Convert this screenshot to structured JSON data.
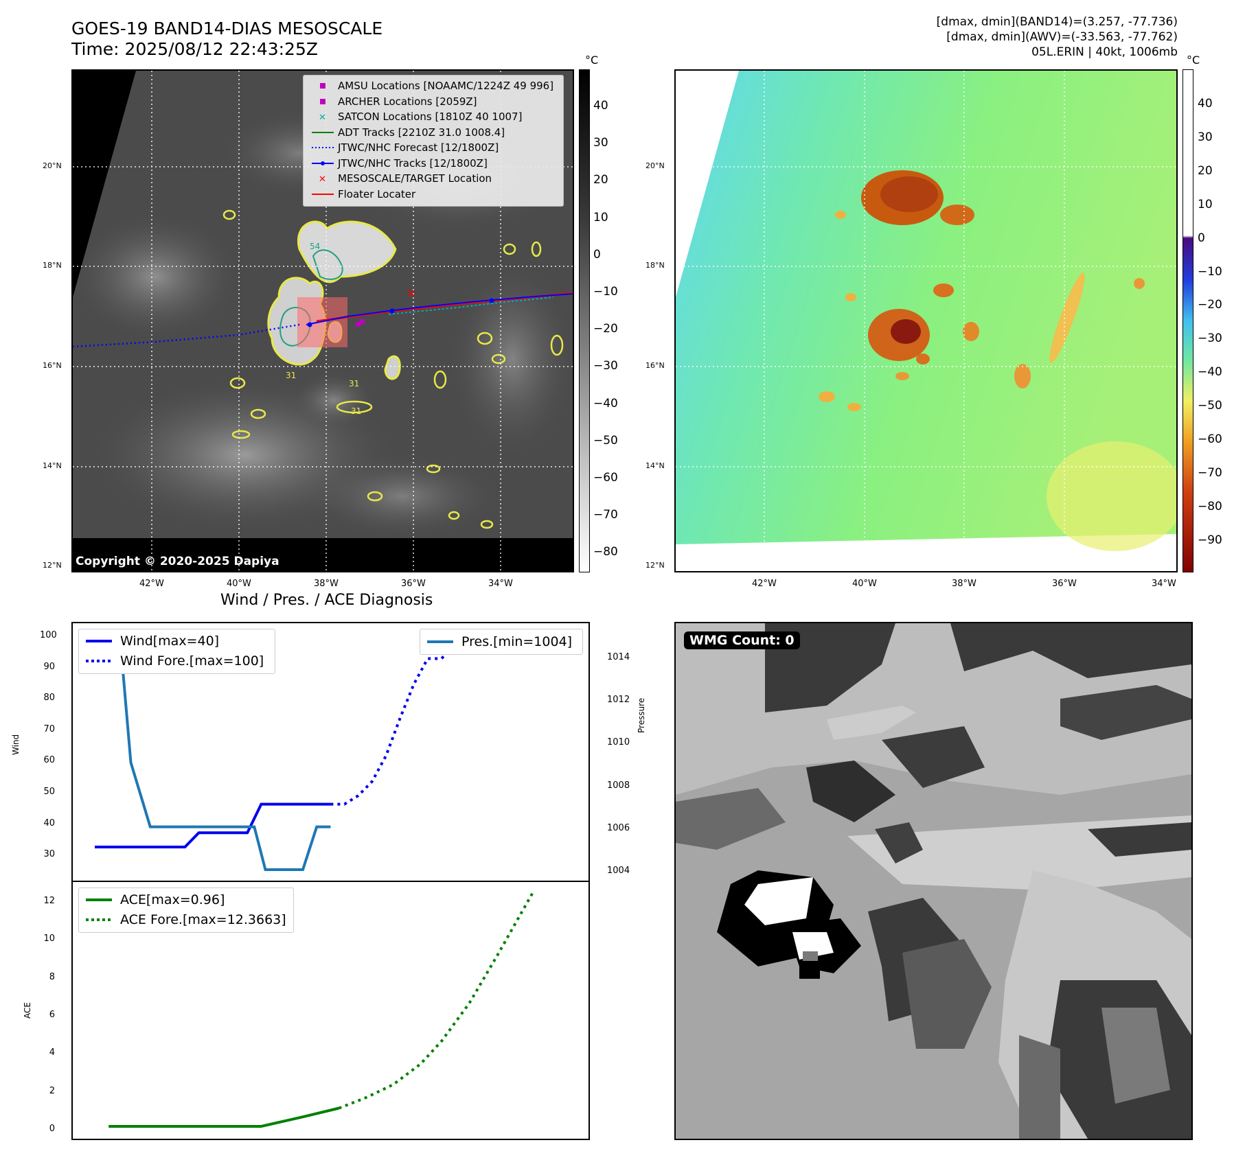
{
  "header": {
    "title": "GOES-19 BAND14-DIAS MESOSCALE",
    "time": "Time: 2025/08/12 22:43:25Z",
    "info_line1": "[dmax, dmin](BAND14)=(3.257, -77.736)",
    "info_line2": "[dmax, dmin](AWV)=(-33.563, -77.762)",
    "info_line3": "05L.ERIN | 40kt, 1006mb"
  },
  "map_axes": {
    "lat_labels": [
      "20°N",
      "18°N",
      "16°N",
      "14°N",
      "12°N"
    ],
    "lon_labels": [
      "42°W",
      "40°W",
      "38°W",
      "36°W",
      "34°W"
    ],
    "copyright": "Copyright © 2020-2025 Dapiya",
    "contour_labels": [
      "54",
      "31",
      "31",
      "31"
    ]
  },
  "ir_colorbar": {
    "unit": "°C",
    "ticks": [
      "40",
      "30",
      "20",
      "10",
      "0",
      "−10",
      "−20",
      "−30",
      "−40",
      "−50",
      "−60",
      "−70",
      "−80"
    ]
  },
  "awv_colorbar": {
    "unit": "°C",
    "ticks": [
      "40",
      "30",
      "20",
      "10",
      "0",
      "−10",
      "−20",
      "−30",
      "−40",
      "−50",
      "−60",
      "−70",
      "−80",
      "−90"
    ]
  },
  "legend": {
    "items": [
      {
        "label": "AMSU Locations [NOAAMC/1224Z 49 996]",
        "symbol": "square",
        "color": "#c000c0"
      },
      {
        "label": "ARCHER Locations [2059Z]",
        "symbol": "square",
        "color": "#c000c0"
      },
      {
        "label": "SATCON Locations [1810Z 40 1007]",
        "symbol": "x",
        "color": "#00b0b0"
      },
      {
        "label": "ADT Tracks [2210Z 31.0 1008.4]",
        "symbol": "line",
        "color": "#008000"
      },
      {
        "label": "JTWC/NHC Forecast [12/1800Z]",
        "symbol": "dotted",
        "color": "#0000ff"
      },
      {
        "label": "JTWC/NHC Tracks [12/1800Z]",
        "symbol": "line-dot",
        "color": "#0000ff"
      },
      {
        "label": "MESOSCALE/TARGET Location",
        "symbol": "x",
        "color": "#ff0000"
      },
      {
        "label": "Floater Locater",
        "symbol": "line",
        "color": "#ff0000"
      }
    ]
  },
  "diag": {
    "title": "Wind / Pres. / ACE Diagnosis",
    "wind_ylabel": "Wind",
    "pres_ylabel": "Pressure",
    "ace_ylabel": "ACE",
    "wind_ticks": [
      "100",
      "90",
      "80",
      "70",
      "60",
      "50",
      "40",
      "30"
    ],
    "pres_ticks": [
      "1014",
      "1012",
      "1010",
      "1008",
      "1006",
      "1004"
    ],
    "ace_ticks": [
      "12",
      "10",
      "8",
      "6",
      "4",
      "2",
      "0"
    ],
    "legend_wind": "Wind[max=40]",
    "legend_wind_fore": "Wind Fore.[max=100]",
    "legend_pres": "Pres.[min=1004]",
    "legend_ace": "ACE[max=0.96]",
    "legend_ace_fore": "ACE Fore.[max=12.3663]"
  },
  "wmg": {
    "label": "WMG Count: 0"
  },
  "chart_data": [
    {
      "type": "line",
      "title": "Wind / Pres. / ACE Diagnosis",
      "ylabel": "Wind",
      "ylim": [
        25,
        102
      ],
      "x": [
        0,
        1,
        2,
        3,
        4,
        5,
        6,
        7,
        8,
        9,
        10,
        11,
        12,
        13,
        14,
        15,
        16,
        17,
        18,
        19,
        20,
        21,
        22,
        23,
        24
      ],
      "series": [
        {
          "name": "Wind[max=40]",
          "color": "#0000ee",
          "style": "solid",
          "x": [
            0,
            6.5,
            7.5,
            11,
            12,
            17
          ],
          "values": [
            25,
            25,
            30,
            30,
            40,
            40
          ]
        },
        {
          "name": "Wind Fore.[max=100]",
          "color": "#0000ee",
          "style": "dotted",
          "x": [
            17,
            18,
            19,
            20,
            21,
            22,
            23,
            24,
            25,
            26,
            27,
            28
          ],
          "values": [
            40,
            40,
            43,
            48,
            57,
            70,
            82,
            91,
            91,
            96,
            100,
            100
          ]
        }
      ]
    },
    {
      "type": "line",
      "ylabel": "Pressure",
      "ylim": [
        1003.5,
        1015.5
      ],
      "series": [
        {
          "name": "Pres.[min=1004]",
          "color": "#1f77b4",
          "style": "solid",
          "x": [
            1,
            1.8,
            2.6,
            4,
            11.5,
            12.3,
            15,
            16,
            17
          ],
          "values": [
            1015,
            1015,
            1009,
            1006,
            1006,
            1004,
            1004,
            1006,
            1006
          ]
        }
      ]
    },
    {
      "type": "line",
      "ylabel": "ACE",
      "ylim": [
        -0.5,
        13.5
      ],
      "series": [
        {
          "name": "ACE[max=0.96]",
          "color": "#008000",
          "style": "solid",
          "x": [
            1,
            9,
            12,
            15,
            17.6
          ],
          "values": [
            0,
            0,
            0,
            0.5,
            0.96
          ]
        },
        {
          "name": "ACE Fore.[max=12.3663]",
          "color": "#008000",
          "style": "dotted",
          "x": [
            17.6,
            19.5,
            21.5,
            23.5,
            25,
            27,
            29,
            31.6
          ],
          "values": [
            0.96,
            1.5,
            2.2,
            3.3,
            4.5,
            6.5,
            9,
            12.3663
          ]
        }
      ]
    }
  ]
}
